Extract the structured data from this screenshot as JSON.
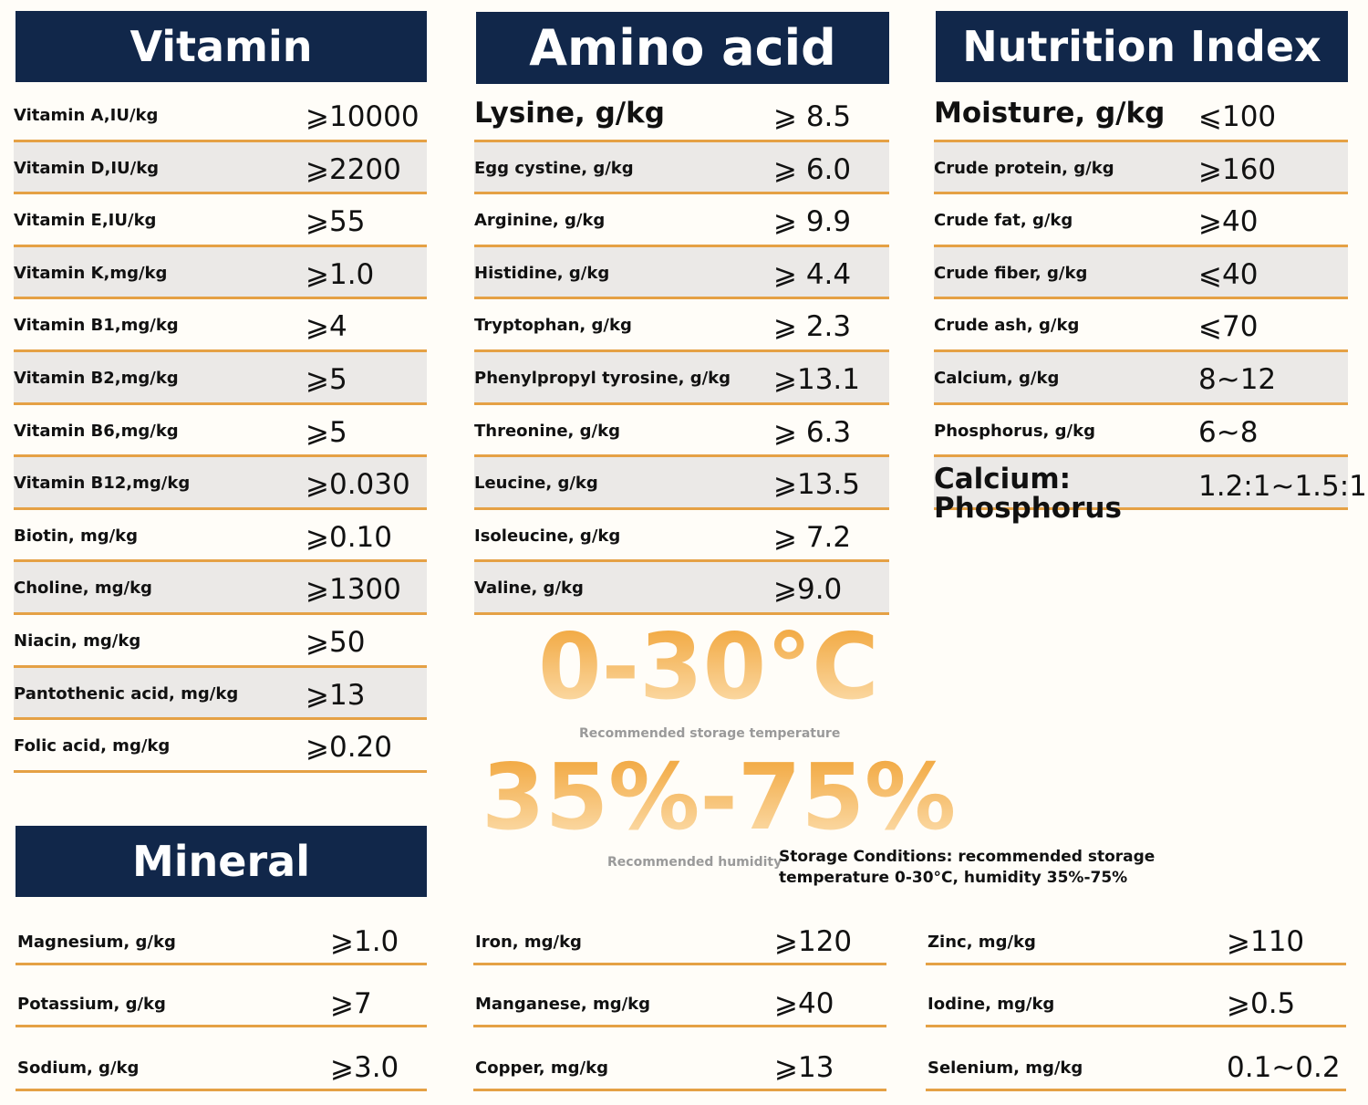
{
  "vitamin": {
    "title": "Vitamin",
    "rows": [
      {
        "name": "Vitamin A,IU/kg",
        "value": "⩾10000"
      },
      {
        "name": "Vitamin D,IU/kg",
        "value": "⩾2200"
      },
      {
        "name": "Vitamin E,IU/kg",
        "value": "⩾55"
      },
      {
        "name": "Vitamin K,mg/kg",
        "value": "⩾1.0"
      },
      {
        "name": "Vitamin B1,mg/kg",
        "value": "⩾4"
      },
      {
        "name": "Vitamin B2,mg/kg",
        "value": "⩾5"
      },
      {
        "name": "Vitamin B6,mg/kg",
        "value": "⩾5"
      },
      {
        "name": "Vitamin B12,mg/kg",
        "value": "⩾0.030"
      },
      {
        "name": "Biotin, mg/kg",
        "value": "⩾0.10"
      },
      {
        "name": "Choline, mg/kg",
        "value": "⩾1300"
      },
      {
        "name": "Niacin, mg/kg",
        "value": "⩾50"
      },
      {
        "name": "Pantothenic acid, mg/kg",
        "value": "⩾13"
      },
      {
        "name": "Folic acid, mg/kg",
        "value": "⩾0.20"
      }
    ]
  },
  "amino_acid": {
    "title": "Amino acid",
    "rows": [
      {
        "name": "Lysine, g/kg",
        "value": "⩾ 8.5"
      },
      {
        "name": "Egg cystine, g/kg",
        "value": "⩾ 6.0"
      },
      {
        "name": "Arginine, g/kg",
        "value": "⩾ 9.9"
      },
      {
        "name": "Histidine, g/kg",
        "value": "⩾ 4.4"
      },
      {
        "name": "Tryptophan, g/kg",
        "value": "⩾ 2.3"
      },
      {
        "name": "Phenylpropyl tyrosine, g/kg",
        "value": "⩾13.1"
      },
      {
        "name": "Threonine, g/kg",
        "value": "⩾ 6.3"
      },
      {
        "name": "Leucine, g/kg",
        "value": "⩾13.5"
      },
      {
        "name": "Isoleucine, g/kg",
        "value": "⩾ 7.2"
      },
      {
        "name": "Valine, g/kg",
        "value": "⩾9.0"
      }
    ]
  },
  "nutrition_index": {
    "title": "Nutrition Index",
    "rows": [
      {
        "name": "Moisture, g/kg",
        "value": "⩽100"
      },
      {
        "name": "Crude protein, g/kg",
        "value": "⩾160"
      },
      {
        "name": "Crude fat, g/kg",
        "value": "⩾40"
      },
      {
        "name": "Crude fiber, g/kg",
        "value": "⩽40"
      },
      {
        "name": "Crude ash, g/kg",
        "value": "⩽70"
      },
      {
        "name": "Calcium, g/kg",
        "value": "8~12"
      },
      {
        "name": "Phosphorus, g/kg",
        "value": "6~8"
      },
      {
        "name": "Calcium: Phosphorus",
        "value": "1.2:1~1.5:1"
      }
    ]
  },
  "storage": {
    "temperature": "0-30°C",
    "temperature_label": "Recommended storage temperature",
    "humidity": "35%-75%",
    "humidity_label": "Recommended humidity",
    "note": "Storage Conditions: recommended storage temperature 0-30°C, humidity 35%-75%"
  },
  "mineral": {
    "title": "Mineral",
    "columns": [
      [
        {
          "name": "Magnesium, g/kg",
          "value": "⩾1.0"
        },
        {
          "name": "Potassium, g/kg",
          "value": "⩾7"
        },
        {
          "name": "Sodium, g/kg",
          "value": "⩾3.0"
        }
      ],
      [
        {
          "name": "Iron, mg/kg",
          "value": "⩾120"
        },
        {
          "name": "Manganese, mg/kg",
          "value": "⩾40"
        },
        {
          "name": "Copper, mg/kg",
          "value": "⩾13"
        }
      ],
      [
        {
          "name": "Zinc, mg/kg",
          "value": "⩾110"
        },
        {
          "name": "Iodine, mg/kg",
          "value": "⩾0.5"
        },
        {
          "name": "Selenium, mg/kg",
          "value": "0.1~0.2"
        }
      ]
    ]
  }
}
